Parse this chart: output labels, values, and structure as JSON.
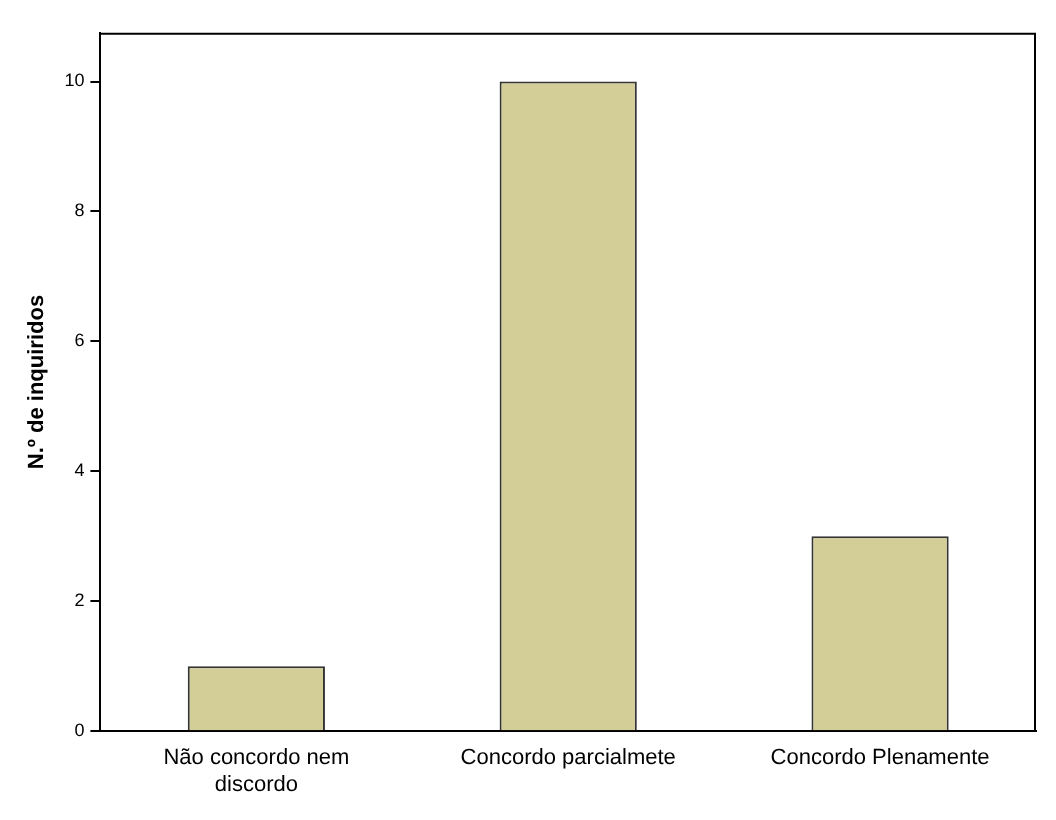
{
  "chart_data": {
    "type": "bar",
    "ylabel": "N.º de inquiridos",
    "categories": [
      "Não concordo nem discordo",
      "Concordo parcialmete",
      "Concordo Plenamente"
    ],
    "values": [
      1,
      10,
      3
    ],
    "color": "#d3ce97",
    "ylim": [
      0,
      10.75
    ],
    "yticks": [
      0,
      2,
      4,
      6,
      8,
      10
    ],
    "grid": false,
    "legend": false
  }
}
